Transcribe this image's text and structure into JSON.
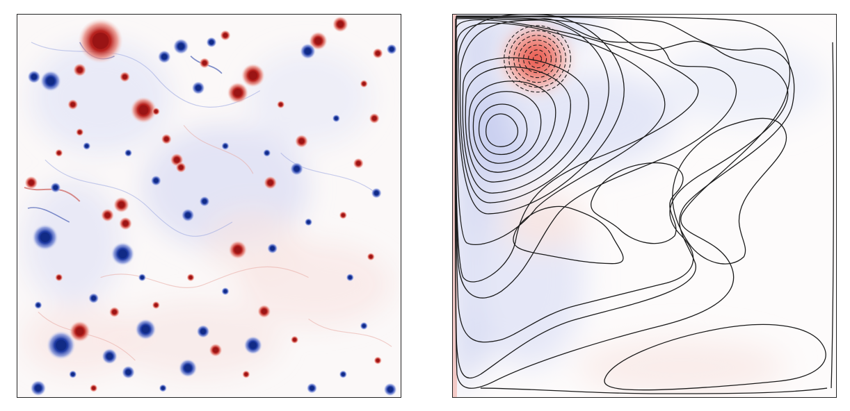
{
  "figure": {
    "panels": [
      {
        "id": "left",
        "description_colormap": "diverging",
        "positive_color": "#b2182b",
        "negative_color": "#1c3d9c"
      },
      {
        "id": "right",
        "description_colormap": "diverging",
        "positive_color": "#e04a3c",
        "negative_color": "#6a78d8",
        "contour_color": "#1a1a1a"
      }
    ]
  },
  "colors": {
    "background": "#ffffff",
    "frame": "#222222",
    "red_strong": "#a11818",
    "red_light": "#f6d4d0",
    "blue_strong": "#12308f",
    "blue_light": "#dfe3f6"
  }
}
